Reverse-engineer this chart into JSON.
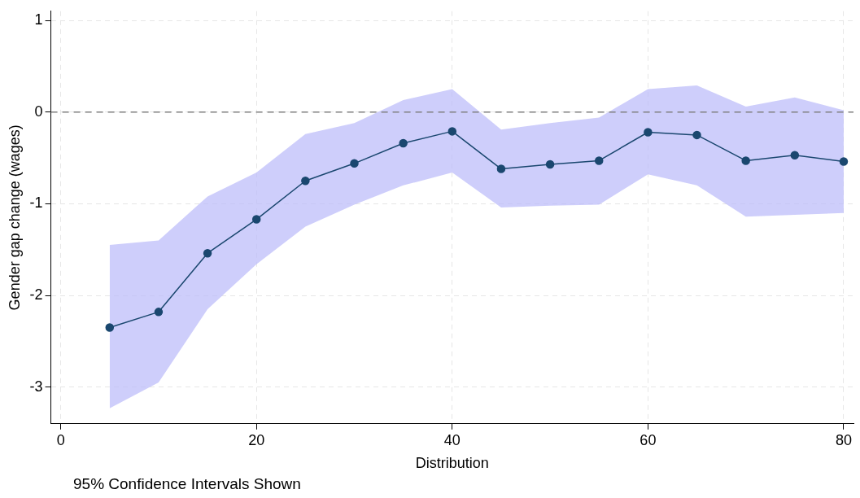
{
  "chart_data": {
    "type": "line",
    "xlabel": "Distribution",
    "ylabel": "Gender gap change (wages)",
    "x": [
      5,
      10,
      15,
      20,
      25,
      30,
      35,
      40,
      45,
      50,
      55,
      60,
      65,
      70,
      75,
      80
    ],
    "series": [
      {
        "color": "#1a476f",
        "values": [
          -2.35,
          -2.18,
          -1.54,
          -1.17,
          -0.75,
          -0.56,
          -0.34,
          -0.21,
          -0.62,
          -0.57,
          -0.53,
          -0.22,
          -0.25,
          -0.53,
          -0.47,
          -0.54
        ],
        "lower": [
          -3.23,
          -2.95,
          -2.15,
          -1.66,
          -1.25,
          -1.01,
          -0.8,
          -0.66,
          -1.04,
          -1.02,
          -1.01,
          -0.68,
          -0.8,
          -1.14,
          -1.12,
          -1.1
        ],
        "upper": [
          -1.45,
          -1.4,
          -0.92,
          -0.66,
          -0.24,
          -0.12,
          0.13,
          0.25,
          -0.19,
          -0.12,
          -0.06,
          0.25,
          0.29,
          0.06,
          0.16,
          0.02
        ]
      }
    ],
    "xlim": [
      -1,
      81
    ],
    "xticks": [
      0,
      20,
      40,
      60,
      80
    ],
    "ylim": [
      -3.4,
      1.1
    ],
    "yticks": [
      -3,
      -2,
      -1,
      0,
      1
    ],
    "ref_lines": [
      {
        "axis": "y",
        "value": 0,
        "color": "#808080",
        "line_style": "dashed"
      }
    ],
    "grid": true,
    "legend": false,
    "marker": "circle",
    "line_style": "solid",
    "annotations": [
      "95% Confidence Intervals Shown"
    ]
  }
}
